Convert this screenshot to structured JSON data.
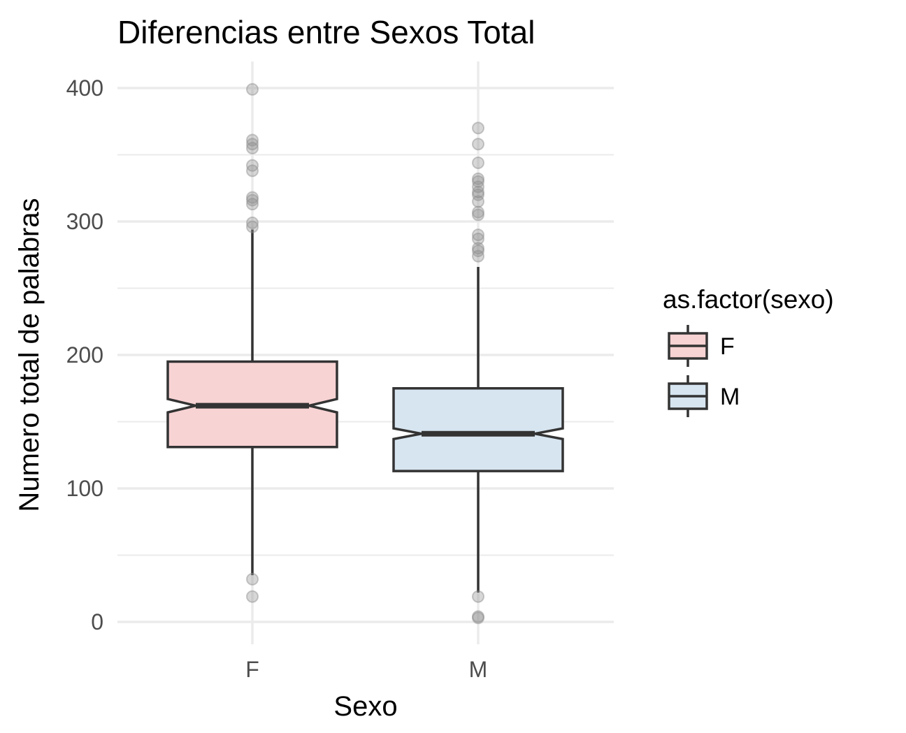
{
  "chart_data": {
    "type": "boxplot",
    "title": "Diferencias entre Sexos Total",
    "xlabel": "Sexo",
    "ylabel": "Numero total de palabras",
    "ylim": [
      -15,
      420
    ],
    "yticks": [
      0,
      100,
      200,
      300,
      400
    ],
    "grid": true,
    "notched": true,
    "categories": [
      "F",
      "M"
    ],
    "boxes": [
      {
        "category": "F",
        "fill": "#f8d3d4",
        "whisker_low": 35,
        "q1": 131,
        "median": 162,
        "q3": 195,
        "whisker_high": 294,
        "notch_low": 157,
        "notch_high": 167,
        "outliers": [
          399,
          361,
          358,
          355,
          342,
          338,
          318,
          316,
          313,
          299,
          296,
          32,
          19
        ]
      },
      {
        "category": "M",
        "fill": "#d7e5f0",
        "whisker_low": 22,
        "q1": 113,
        "median": 141,
        "q3": 175,
        "whisker_high": 266,
        "notch_low": 137,
        "notch_high": 145,
        "outliers": [
          370,
          358,
          344,
          332,
          330,
          326,
          322,
          320,
          315,
          307,
          305,
          290,
          287,
          280,
          278,
          274,
          19,
          4,
          3
        ]
      }
    ],
    "legend": {
      "title": "as.factor(sexo)",
      "position": "right",
      "entries": [
        {
          "label": "F",
          "fill": "#f8d3d4"
        },
        {
          "label": "M",
          "fill": "#d7e5f0"
        }
      ]
    },
    "colors": {
      "stroke": "#333333",
      "outlier": "#8c8c8c",
      "grid": "#ebebeb"
    }
  }
}
